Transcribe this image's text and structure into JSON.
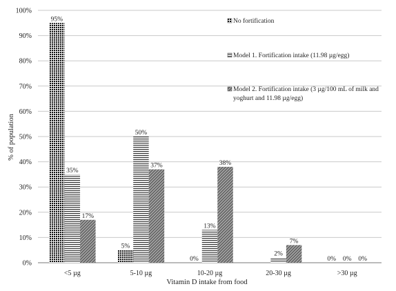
{
  "chart_data": {
    "type": "bar",
    "xlabel": "Vitamin D intake from food",
    "ylabel": "% of population",
    "ylim": [
      0,
      100
    ],
    "ytick_step": 10,
    "yticks": [
      "0%",
      "10%",
      "20%",
      "30%",
      "40%",
      "50%",
      "60%",
      "70%",
      "80%",
      "90%",
      "100%"
    ],
    "grid": true,
    "legend_position": "right",
    "categories": [
      "<5 µg",
      "5-10 µg",
      "10-20 µg",
      "20-30 µg",
      ">30 µg"
    ],
    "series": [
      {
        "name": "No fortification",
        "values": [
          95,
          5,
          0,
          0,
          0
        ],
        "labels": [
          "95%",
          "5%",
          "0%",
          "",
          "0%"
        ],
        "pattern": "dense-grid"
      },
      {
        "name": "Model 1. Fortification intake (11.98 µg/egg)",
        "values": [
          35,
          50,
          13,
          2,
          0
        ],
        "labels": [
          "35%",
          "50%",
          "13%",
          "2%",
          "0%"
        ],
        "pattern": "horizontal-lines"
      },
      {
        "name": "Model 2. Fortification intake (3 µg/100 mL of milk and yoghurt and 11.98 µg/egg)",
        "name_lines": [
          "Model 2. Fortification intake (3 µg/100 mL of milk and",
          "yoghurt and 11.98 µg/egg)"
        ],
        "values": [
          17,
          37,
          38,
          7,
          0
        ],
        "labels": [
          "17%",
          "37%",
          "38%",
          "7%",
          "0%"
        ],
        "pattern": "diagonal-lines"
      }
    ]
  }
}
